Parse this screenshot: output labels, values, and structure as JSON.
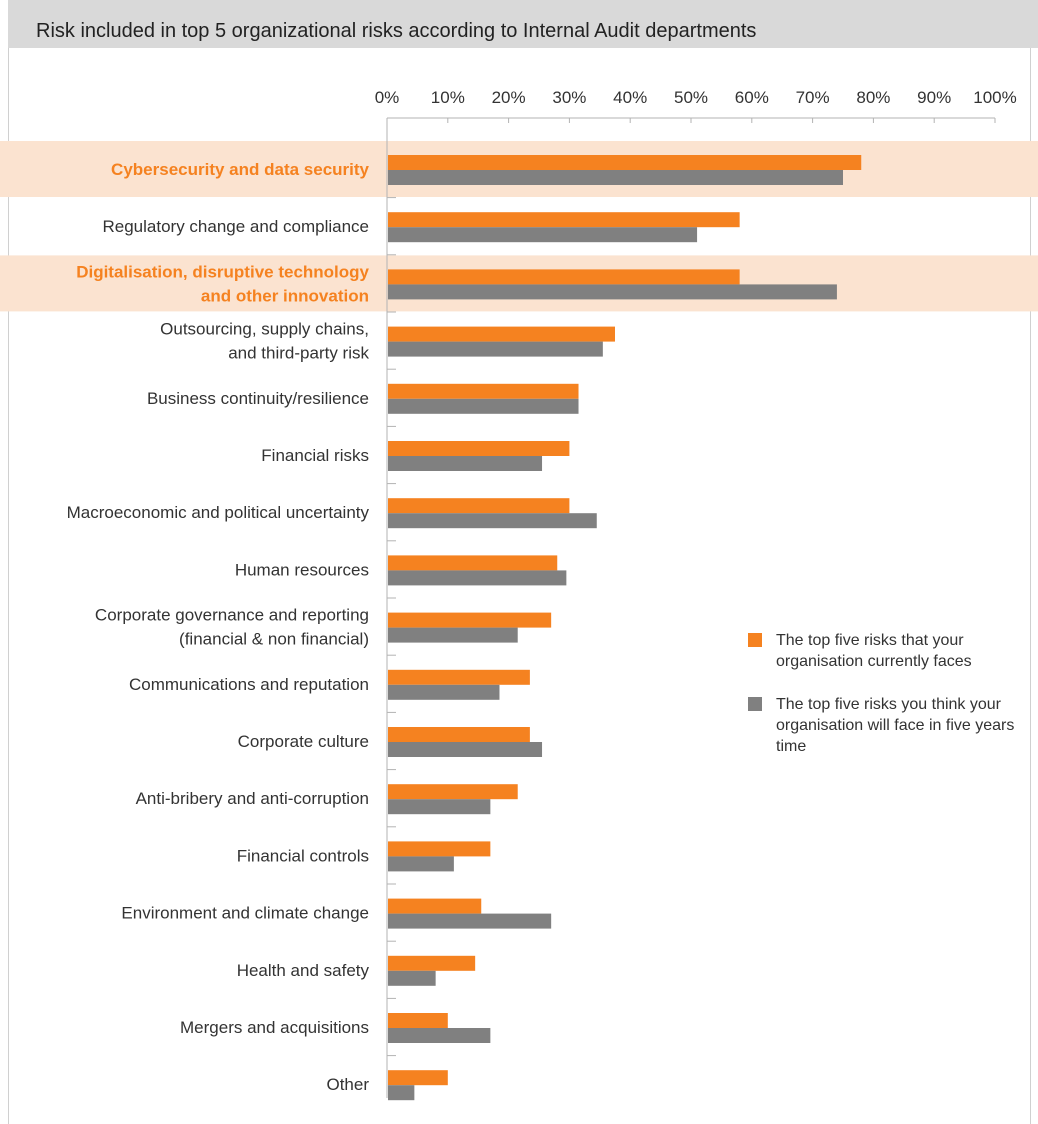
{
  "title": "Risk included in top 5 organizational risks according to Internal Audit departments",
  "colors": {
    "current": "#F58220",
    "future": "#808080",
    "highlight": "#FBE3D0",
    "highlight_text": "#F58220"
  },
  "legend": {
    "current": "The top five risks that your organisation currently faces",
    "future": "The top five risks you think your organisation will face in five years time"
  },
  "chart_data": {
    "type": "bar",
    "orientation": "horizontal",
    "title": "Risk included in top 5 organizational risks according to Internal Audit departments",
    "xlim": [
      0,
      100
    ],
    "x_ticks": [
      "0%",
      "10%",
      "20%",
      "30%",
      "40%",
      "50%",
      "60%",
      "70%",
      "80%",
      "90%",
      "100%"
    ],
    "categories": [
      {
        "label": [
          "Cybersecurity and data security"
        ],
        "highlight": true
      },
      {
        "label": [
          "Regulatory change and compliance"
        ],
        "highlight": false
      },
      {
        "label": [
          "Digitalisation, disruptive technology",
          "and other innovation"
        ],
        "highlight": true
      },
      {
        "label": [
          "Outsourcing, supply chains,",
          "and third-party risk"
        ],
        "highlight": false
      },
      {
        "label": [
          "Business continuity/resilience"
        ],
        "highlight": false
      },
      {
        "label": [
          "Financial risks"
        ],
        "highlight": false
      },
      {
        "label": [
          "Macroeconomic and political uncertainty"
        ],
        "highlight": false
      },
      {
        "label": [
          "Human resources"
        ],
        "highlight": false
      },
      {
        "label": [
          "Corporate governance and reporting",
          "(financial & non financial)"
        ],
        "highlight": false
      },
      {
        "label": [
          "Communications and reputation"
        ],
        "highlight": false
      },
      {
        "label": [
          "Corporate culture"
        ],
        "highlight": false
      },
      {
        "label": [
          "Anti-bribery and anti-corruption"
        ],
        "highlight": false
      },
      {
        "label": [
          "Financial controls"
        ],
        "highlight": false
      },
      {
        "label": [
          "Environment and climate change"
        ],
        "highlight": false
      },
      {
        "label": [
          "Health and safety"
        ],
        "highlight": false
      },
      {
        "label": [
          "Mergers and acquisitions"
        ],
        "highlight": false
      },
      {
        "label": [
          "Other"
        ],
        "highlight": false
      }
    ],
    "series": [
      {
        "name": "The top five risks that your organisation currently faces",
        "key": "current",
        "values": [
          78,
          58,
          58,
          37.5,
          31.5,
          30,
          30,
          28,
          27,
          23.5,
          23.5,
          21.5,
          17,
          15.5,
          14.5,
          10,
          10
        ]
      },
      {
        "name": "The top five risks you think your organisation will face in five years time",
        "key": "future",
        "values": [
          75,
          51,
          74,
          35.5,
          31.5,
          25.5,
          34.5,
          29.5,
          21.5,
          18.5,
          25.5,
          17,
          11,
          27,
          8,
          17,
          4.5
        ]
      }
    ],
    "legend_position": "right",
    "grid": false
  }
}
